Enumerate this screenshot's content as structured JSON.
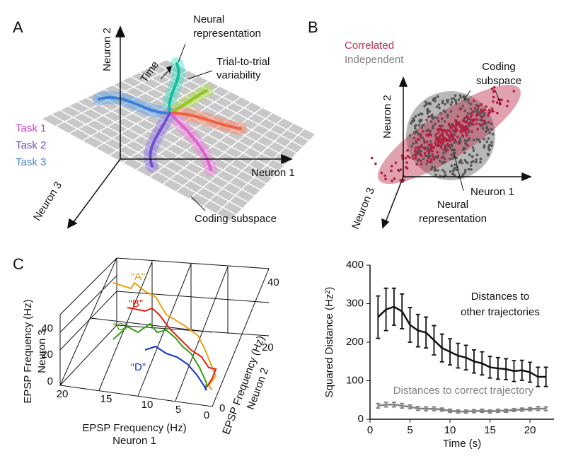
{
  "panels": {
    "A": {
      "label": "A",
      "axis_y": "Neuron 2",
      "axis_x": "Neuron 1",
      "axis_z": "Neuron 3",
      "time": "Time",
      "neural_representation": [
        "Neural",
        "representation"
      ],
      "variability": [
        "Trial-to-trial",
        "variability"
      ],
      "tasks": [
        "Task 1",
        "Task 2",
        "Task 3"
      ],
      "coding_subspace": "Coding subspace"
    },
    "B": {
      "label": "B",
      "correlated": "Correlated",
      "independent": "Independent",
      "coding_subspace": [
        "Coding",
        "subspace"
      ],
      "axis_y": "Neuron 2",
      "axis_x": "Neuron 1",
      "axis_z": "Neuron 3",
      "neural_representation": [
        "Neural",
        "representation"
      ]
    },
    "C": {
      "label": "C",
      "axis_z": [
        "EPSP Frequency (Hz)",
        "Neuron 3"
      ],
      "axis_x": [
        "EPSP Frequency (Hz)",
        "Neuron 1"
      ],
      "axis_y": [
        "EPSP Frequency (Hz)",
        "Neuron 2"
      ],
      "z_ticks": [
        "40",
        "20",
        "0"
      ],
      "x_ticks": [
        "20",
        "15",
        "10",
        "5",
        "0"
      ],
      "y_ticks": [
        "40",
        "20",
        "0"
      ],
      "trajectories": [
        "“A”",
        "“B”",
        "“C”",
        "“D”"
      ]
    }
  },
  "chart_data": {
    "type": "line",
    "y_label": "Squared Distance (Hz²)",
    "x_label": "Time (s)",
    "annotations": [
      [
        "Distances to",
        "other trajectories"
      ],
      [
        "Distances to correct trajectory"
      ]
    ],
    "x": [
      1,
      2,
      3,
      4,
      5,
      6,
      7,
      8,
      9,
      10,
      11,
      12,
      13,
      14,
      15,
      16,
      17,
      18,
      19,
      20,
      21,
      22
    ],
    "series": [
      {
        "color": "#111111",
        "values": [
          265,
          285,
          292,
          280,
          245,
          230,
          225,
          205,
          185,
          175,
          165,
          160,
          150,
          145,
          135,
          132,
          130,
          125,
          127,
          122,
          110,
          110
        ],
        "errors": [
          55,
          55,
          48,
          45,
          45,
          42,
          40,
          38,
          36,
          34,
          32,
          32,
          30,
          30,
          28,
          28,
          27,
          27,
          26,
          26,
          25,
          25
        ]
      },
      {
        "color": "#808080",
        "values": [
          35,
          38,
          38,
          35,
          32,
          28,
          27,
          27,
          25,
          22,
          20,
          20,
          21,
          22,
          20,
          22,
          22,
          24,
          25,
          26,
          28,
          27
        ],
        "errors": [
          6,
          6,
          6,
          6,
          5,
          5,
          5,
          5,
          4,
          4,
          4,
          4,
          4,
          4,
          4,
          4,
          4,
          4,
          4,
          4,
          5,
          5
        ]
      }
    ],
    "xlim": [
      0,
      23
    ],
    "ylim": [
      0,
      400
    ],
    "xticks": [
      0,
      5,
      10,
      15,
      20
    ],
    "yticks": [
      0,
      100,
      200,
      300,
      400
    ]
  }
}
